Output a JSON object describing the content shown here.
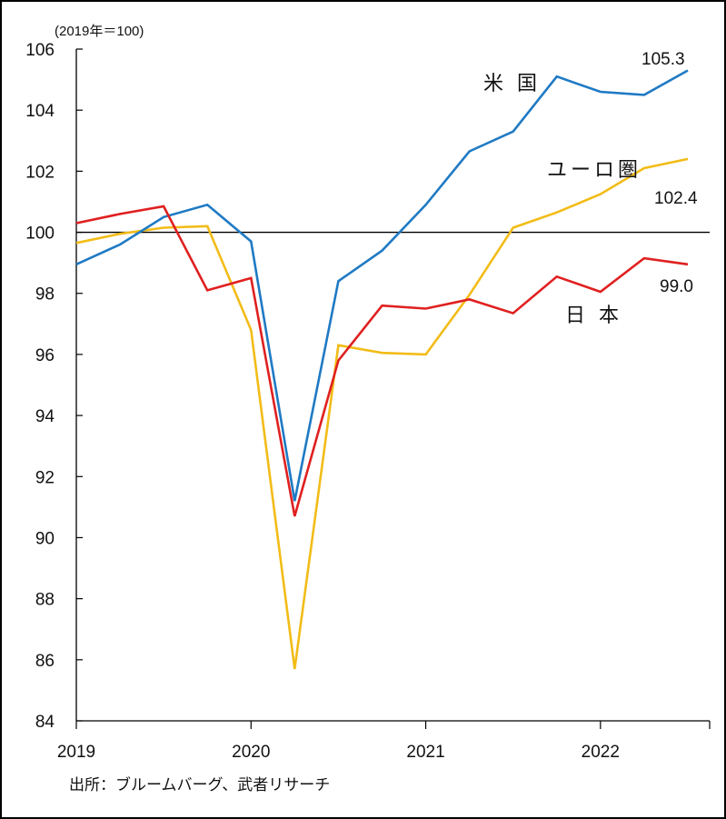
{
  "chart_data": {
    "type": "line",
    "unit_label": "(2019年＝100)",
    "source": "出所：ブルームバーグ、武者リサーチ",
    "ylim": [
      84,
      106
    ],
    "yticks": [
      "84",
      "86",
      "88",
      "90",
      "92",
      "94",
      "96",
      "98",
      "100",
      "102",
      "104",
      "106"
    ],
    "xlabels": [
      "2019",
      "2020",
      "2021",
      "2022"
    ],
    "reference_line": 100,
    "x": [
      "2019Q1",
      "2019Q2",
      "2019Q3",
      "2019Q4",
      "2020Q1",
      "2020Q2",
      "2020Q3",
      "2020Q4",
      "2021Q1",
      "2021Q2",
      "2021Q3",
      "2021Q4",
      "2022Q1",
      "2022Q2",
      "2022Q3"
    ],
    "series": [
      {
        "name": "米 国",
        "color": "#1f7ac4",
        "end_label": "105.3",
        "values": [
          98.95,
          99.6,
          100.5,
          100.9,
          99.7,
          91.2,
          98.4,
          99.4,
          100.9,
          102.65,
          103.3,
          105.1,
          104.6,
          104.5,
          105.3
        ]
      },
      {
        "name": "ユーロ圏",
        "color": "#f2bc17",
        "end_label": "102.4",
        "values": [
          99.65,
          99.95,
          100.15,
          100.2,
          96.8,
          85.7,
          96.3,
          96.05,
          96.0,
          97.95,
          100.15,
          100.65,
          101.25,
          102.1,
          102.4
        ]
      },
      {
        "name": "日 本",
        "color": "#e02020",
        "end_label": "99.0",
        "values": [
          100.3,
          100.6,
          100.85,
          98.1,
          98.5,
          90.7,
          95.8,
          97.6,
          97.5,
          97.8,
          97.35,
          98.55,
          98.05,
          99.15,
          98.95
        ]
      }
    ]
  }
}
